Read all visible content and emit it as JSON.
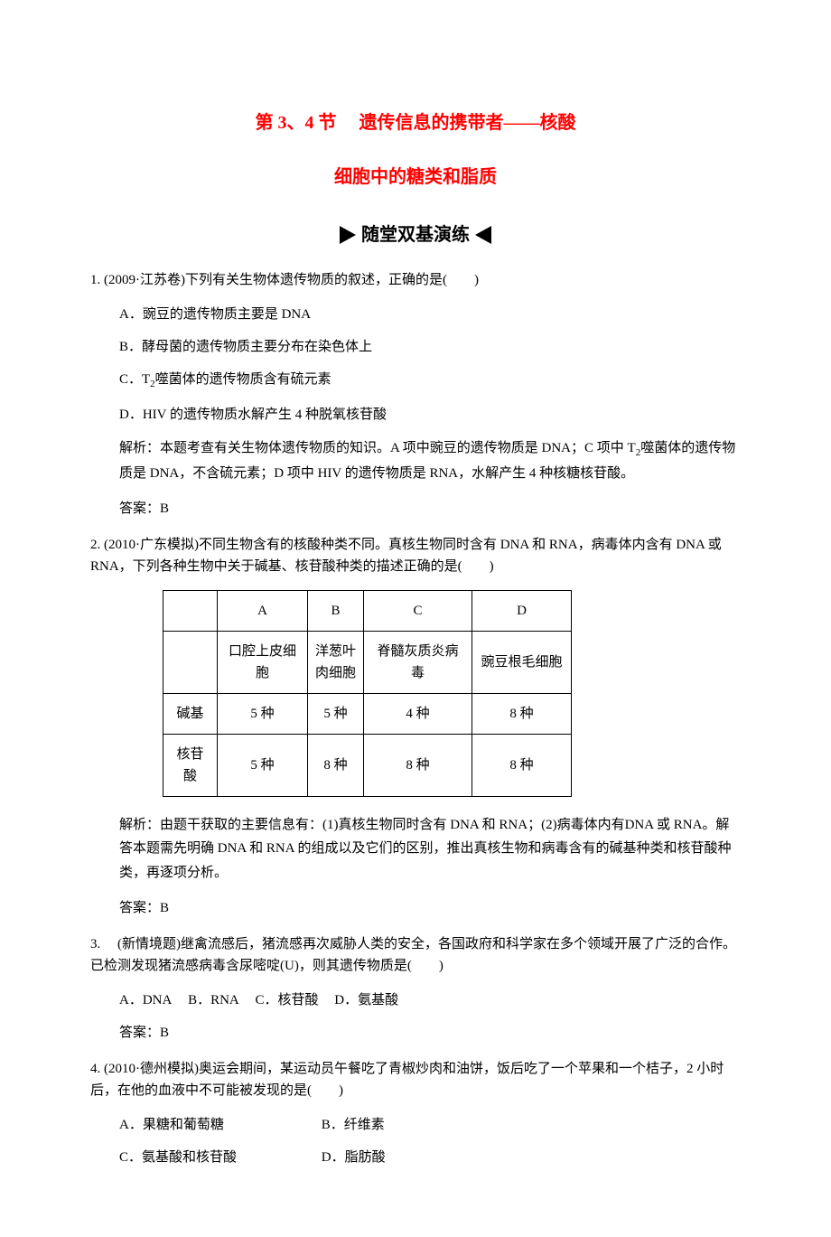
{
  "title1": "第 3、4 节　 遗传信息的携带者——核酸",
  "title2": "细胞中的糖类和脂质",
  "sectionHeader": "随堂双基演练",
  "q1": {
    "stem": "1. (2009·江苏卷)下列有关生物体遗传物质的叙述，正确的是(　　)",
    "optA": "A．豌豆的遗传物质主要是 DNA",
    "optB": "B．酵母菌的遗传物质主要分布在染色体上",
    "optC_pre": "C．T",
    "optC_sub": "2",
    "optC_post": "噬菌体的遗传物质含有硫元素",
    "optD": "D．HIV 的遗传物质水解产生 4 种脱氧核苷酸",
    "expl_pre": "解析：本题考查有关生物体遗传物质的知识。A 项中豌豆的遗传物质是 DNA；C 项中 T",
    "expl_sub": "2",
    "expl_post": "噬菌体的遗传物质是 DNA，不含硫元素；D 项中 HIV 的遗传物质是 RNA，水解产生 4 种核糖核苷酸。",
    "answer": "答案：B"
  },
  "q2": {
    "stem": "2. (2010·广东模拟)不同生物含有的核酸种类不同。真核生物同时含有 DNA 和 RNA，病毒体内含有 DNA 或 RNA，下列各种生物中关于碱基、核苷酸种类的描述正确的是(　　)",
    "table": {
      "headerEmpty": "",
      "colA": "A",
      "colB": "B",
      "colC": "C",
      "colD": "D",
      "row1": [
        "",
        "口腔上皮细胞",
        "洋葱叶肉细胞",
        "脊髓灰质炎病毒",
        "豌豆根毛细胞"
      ],
      "row2": [
        "碱基",
        "5 种",
        "5 种",
        "4 种",
        "8 种"
      ],
      "row3": [
        "核苷酸",
        "5 种",
        "8 种",
        "8 种",
        "8 种"
      ]
    },
    "expl": "解析：由题干获取的主要信息有：(1)真核生物同时含有 DNA 和 RNA；(2)病毒体内有DNA 或 RNA。解答本题需先明确 DNA 和 RNA 的组成以及它们的区别，推出真核生物和病毒含有的碱基种类和核苷酸种类，再逐项分析。",
    "answer": "答案：B"
  },
  "q3": {
    "stem": "3.　 (新情境题)继禽流感后，猪流感再次威胁人类的安全，各国政府和科学家在多个领域开展了广泛的合作。已检测发现猪流感病毒含尿嘧啶(U)，则其遗传物质是(　　)",
    "optA": "A．DNA",
    "optB": "B．RNA",
    "optC": "C．核苷酸",
    "optD": "D．氨基酸",
    "answer": "答案：B"
  },
  "q4": {
    "stem": "4. (2010·德州模拟)奥运会期间，某运动员午餐吃了青椒炒肉和油饼，饭后吃了一个苹果和一个桔子，2 小时后，在他的血液中不可能被发现的是(　　)",
    "optA": "A．果糖和葡萄糖",
    "optB": "B．纤维素",
    "optC": "C．氨基酸和核苷酸",
    "optD": "D．脂肪酸"
  }
}
